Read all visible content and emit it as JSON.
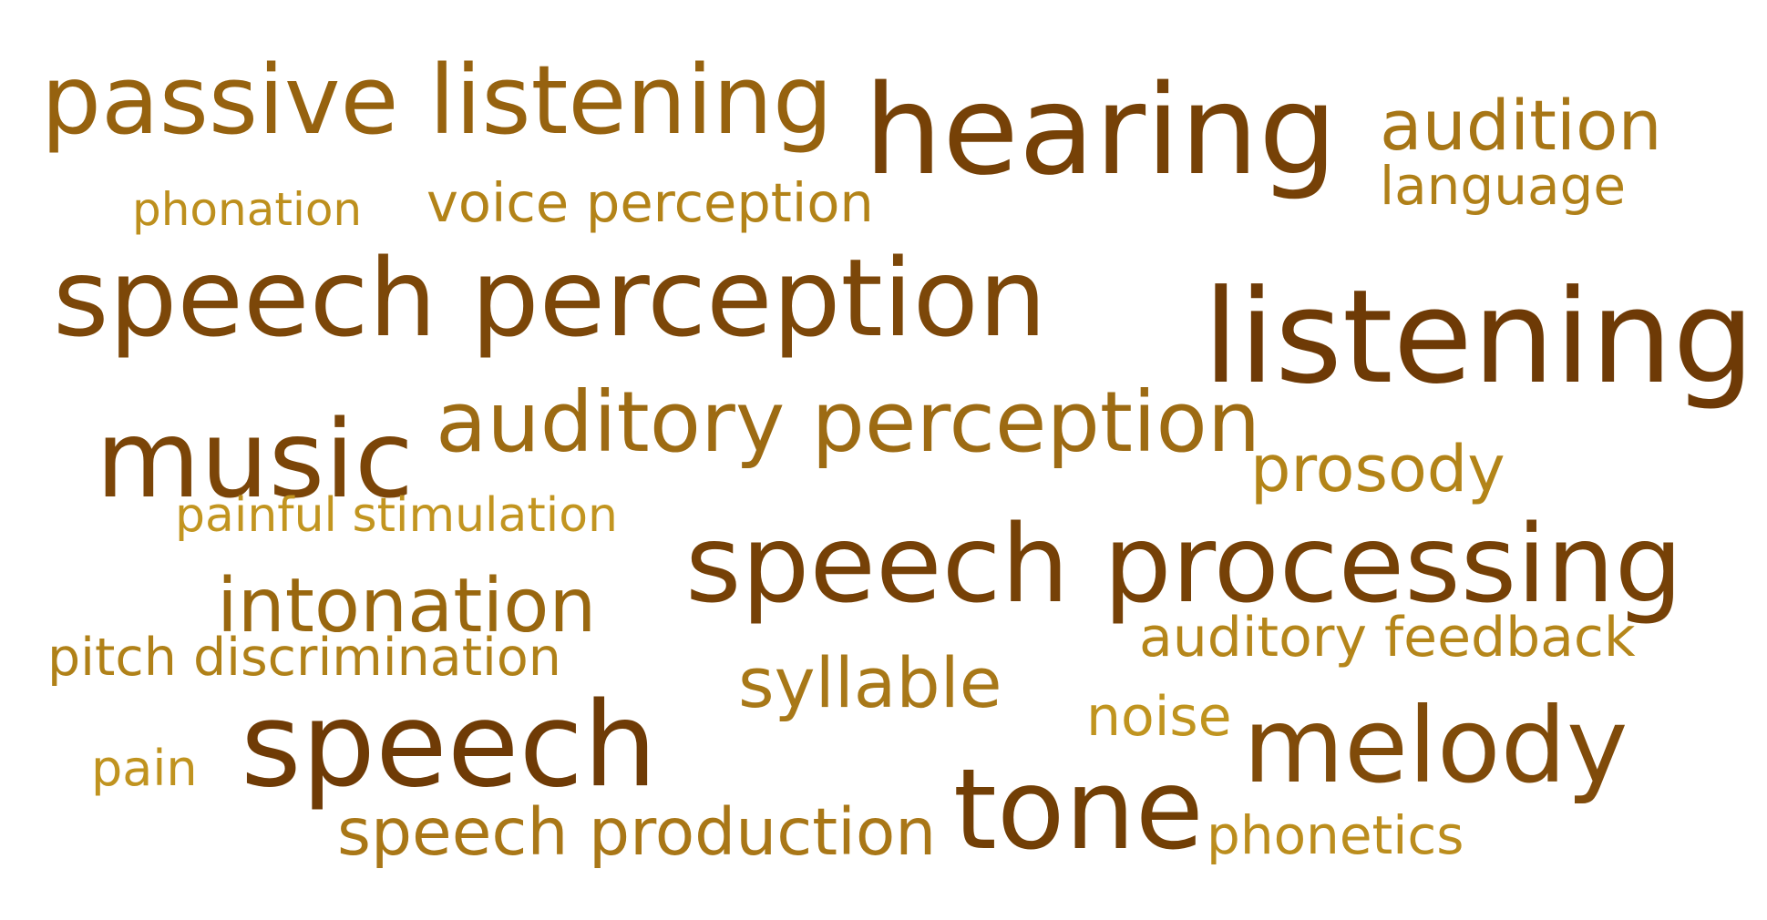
{
  "word_cloud": {
    "words": [
      {
        "text": "passive listening",
        "color": "#96620f"
      },
      {
        "text": "hearing",
        "color": "#764107"
      },
      {
        "text": "audition",
        "color": "#a77616"
      },
      {
        "text": "language",
        "color": "#b08018"
      },
      {
        "text": "phonation",
        "color": "#bd8f1d"
      },
      {
        "text": "voice perception",
        "color": "#b38318"
      },
      {
        "text": "speech perception",
        "color": "#7c4709"
      },
      {
        "text": "listening",
        "color": "#6e3a06"
      },
      {
        "text": "music",
        "color": "#7b4508"
      },
      {
        "text": "auditory perception",
        "color": "#9d6b13"
      },
      {
        "text": "prosody",
        "color": "#b38418"
      },
      {
        "text": "painful stimulation",
        "color": "#c29520"
      },
      {
        "text": "speech processing",
        "color": "#764107"
      },
      {
        "text": "intonation",
        "color": "#99670f"
      },
      {
        "text": "auditory feedback",
        "color": "#b5861a"
      },
      {
        "text": "pitch discrimination",
        "color": "#b08118"
      },
      {
        "text": "syllable",
        "color": "#a87818"
      },
      {
        "text": "noise",
        "color": "#c0941f"
      },
      {
        "text": "speech",
        "color": "#6f3b06"
      },
      {
        "text": "melody",
        "color": "#804b0a"
      },
      {
        "text": "pain",
        "color": "#c0931f"
      },
      {
        "text": "tone",
        "color": "#723f06"
      },
      {
        "text": "speech production",
        "color": "#a97717"
      },
      {
        "text": "phonetics",
        "color": "#bb8d1d"
      }
    ]
  }
}
